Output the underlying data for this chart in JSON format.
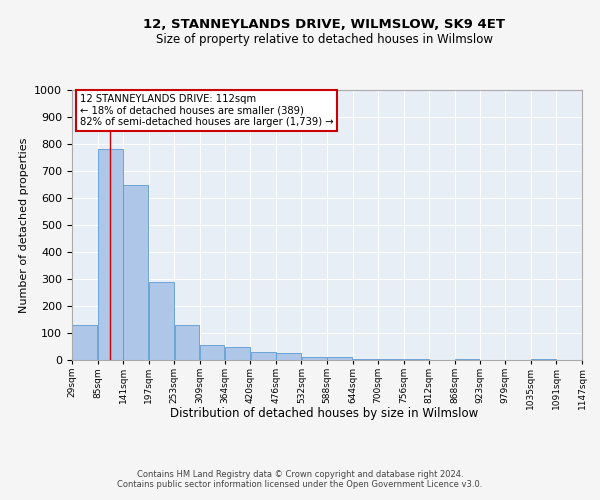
{
  "title": "12, STANNEYLANDS DRIVE, WILMSLOW, SK9 4ET",
  "subtitle": "Size of property relative to detached houses in Wilmslow",
  "xlabel": "Distribution of detached houses by size in Wilmslow",
  "ylabel": "Number of detached properties",
  "bar_color": "#aec6e8",
  "bar_edge_color": "#5b9bd5",
  "background_color": "#e8eef5",
  "grid_color": "#ffffff",
  "bins": [
    29,
    85,
    141,
    197,
    253,
    309,
    364,
    420,
    476,
    532,
    588,
    644,
    700,
    756,
    812,
    868,
    923,
    979,
    1035,
    1091,
    1147
  ],
  "bin_labels": [
    "29sqm",
    "85sqm",
    "141sqm",
    "197sqm",
    "253sqm",
    "309sqm",
    "364sqm",
    "420sqm",
    "476sqm",
    "532sqm",
    "588sqm",
    "644sqm",
    "700sqm",
    "756sqm",
    "812sqm",
    "868sqm",
    "923sqm",
    "979sqm",
    "1035sqm",
    "1091sqm",
    "1147sqm"
  ],
  "values": [
    130,
    780,
    650,
    290,
    130,
    55,
    50,
    30,
    25,
    10,
    12,
    5,
    5,
    5,
    0,
    5,
    0,
    0,
    5,
    0,
    0
  ],
  "ylim": [
    0,
    1000
  ],
  "yticks": [
    0,
    100,
    200,
    300,
    400,
    500,
    600,
    700,
    800,
    900,
    1000
  ],
  "property_size": 112,
  "property_label": "12 STANNEYLANDS DRIVE: 112sqm",
  "annotation_line1": "← 18% of detached houses are smaller (389)",
  "annotation_line2": "82% of semi-detached houses are larger (1,739) →",
  "annotation_box_color": "#ffffff",
  "annotation_box_edge": "#cc0000",
  "vline_color": "#cc0000",
  "footer1": "Contains HM Land Registry data © Crown copyright and database right 2024.",
  "footer2": "Contains public sector information licensed under the Open Government Licence v3.0.",
  "fig_bg": "#f5f5f5"
}
